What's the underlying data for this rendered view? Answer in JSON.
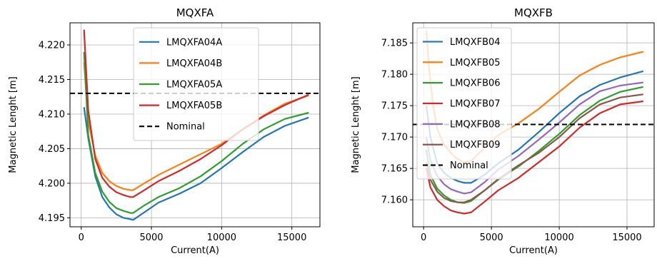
{
  "chart_data": [
    {
      "type": "line",
      "title": "MQXFA",
      "xlabel": "Current(A)",
      "ylabel": "Magnetic Lenght [m]",
      "xlim": [
        -800,
        17000
      ],
      "ylim": [
        4.1937,
        4.2232
      ],
      "xticks": [
        0,
        5000,
        10000,
        15000
      ],
      "yticks": [
        4.195,
        4.2,
        4.205,
        4.21,
        4.215,
        4.22
      ],
      "ytick_format": 3,
      "grid": true,
      "legend_position": "upper-center",
      "nominal": {
        "name": "Nominal",
        "value": 4.213
      },
      "series": [
        {
          "name": "LMQXFA04A",
          "color": "#1f77b4",
          "points": [
            [
              200,
              4.211
            ],
            [
              500,
              4.2065
            ],
            [
              1000,
              4.201
            ],
            [
              1500,
              4.198
            ],
            [
              2000,
              4.1965
            ],
            [
              2500,
              4.1955
            ],
            [
              3000,
              4.195
            ],
            [
              3500,
              4.1948
            ],
            [
              3700,
              4.1947
            ],
            [
              4500,
              4.1958
            ],
            [
              5500,
              4.1972
            ],
            [
              7000,
              4.1985
            ],
            [
              8500,
              4.2
            ],
            [
              10000,
              4.2022
            ],
            [
              11500,
              4.2045
            ],
            [
              13000,
              4.2067
            ],
            [
              14500,
              4.2083
            ],
            [
              16200,
              4.2095
            ]
          ]
        },
        {
          "name": "LMQXFA04B",
          "color": "#ff7f0e",
          "points": [
            [
              200,
              4.2175
            ],
            [
              500,
              4.209
            ],
            [
              1000,
              4.204
            ],
            [
              1500,
              4.2015
            ],
            [
              2000,
              4.2003
            ],
            [
              2500,
              4.1996
            ],
            [
              3000,
              4.1992
            ],
            [
              3500,
              4.199
            ],
            [
              3700,
              4.199
            ],
            [
              4500,
              4.2
            ],
            [
              5500,
              4.2012
            ],
            [
              7000,
              4.2027
            ],
            [
              8500,
              4.2042
            ],
            [
              10000,
              4.2057
            ],
            [
              11500,
              4.2078
            ],
            [
              13000,
              4.2098
            ],
            [
              14500,
              4.2115
            ],
            [
              16200,
              4.2127
            ]
          ]
        },
        {
          "name": "LMQXFA05A",
          "color": "#2ca02c",
          "points": [
            [
              200,
              4.219
            ],
            [
              500,
              4.207
            ],
            [
              1000,
              4.2015
            ],
            [
              1500,
              4.1988
            ],
            [
              2000,
              4.1973
            ],
            [
              2500,
              4.1964
            ],
            [
              3000,
              4.196
            ],
            [
              3500,
              4.1957
            ],
            [
              3700,
              4.1957
            ],
            [
              4500,
              4.1968
            ],
            [
              5500,
              4.198
            ],
            [
              7000,
              4.1993
            ],
            [
              8500,
              4.201
            ],
            [
              10000,
              4.2032
            ],
            [
              11500,
              4.2057
            ],
            [
              13000,
              4.2078
            ],
            [
              14500,
              4.2093
            ],
            [
              16200,
              4.2102
            ]
          ]
        },
        {
          "name": "LMQXFA05B",
          "color": "#d62728",
          "points": [
            [
              200,
              4.2222
            ],
            [
              500,
              4.2105
            ],
            [
              1000,
              4.2035
            ],
            [
              1500,
              4.2008
            ],
            [
              2000,
              4.1995
            ],
            [
              2500,
              4.1987
            ],
            [
              3000,
              4.1983
            ],
            [
              3500,
              4.198
            ],
            [
              3700,
              4.198
            ],
            [
              4500,
              4.199
            ],
            [
              5500,
              4.2003
            ],
            [
              7000,
              4.2018
            ],
            [
              8500,
              4.2035
            ],
            [
              10000,
              4.2055
            ],
            [
              11500,
              4.2078
            ],
            [
              13000,
              4.2097
            ],
            [
              14500,
              4.2113
            ],
            [
              16200,
              4.2128
            ]
          ]
        }
      ]
    },
    {
      "type": "line",
      "title": "MQXFB",
      "xlabel": "Current(A)",
      "ylabel": "Magnetic Lenght [m]",
      "xlim": [
        -800,
        17000
      ],
      "ylim": [
        7.1557,
        7.1882
      ],
      "xticks": [
        0,
        5000,
        10000,
        15000
      ],
      "yticks": [
        7.16,
        7.165,
        7.17,
        7.175,
        7.18,
        7.185
      ],
      "ytick_format": 3,
      "grid": true,
      "legend_position": "upper-left",
      "nominal": {
        "name": "Nominal",
        "value": 7.172
      },
      "series": [
        {
          "name": "LMQXFB04",
          "color": "#1f77b4",
          "points": [
            [
              200,
              7.175
            ],
            [
              500,
              7.17
            ],
            [
              1000,
              7.1658
            ],
            [
              1500,
              7.1643
            ],
            [
              2000,
              7.1635
            ],
            [
              2500,
              7.163
            ],
            [
              3000,
              7.1627
            ],
            [
              3500,
              7.1627
            ],
            [
              4500,
              7.164
            ],
            [
              5500,
              7.1658
            ],
            [
              7000,
              7.168
            ],
            [
              8500,
              7.1708
            ],
            [
              10000,
              7.1738
            ],
            [
              11500,
              7.1765
            ],
            [
              13000,
              7.1783
            ],
            [
              14500,
              7.1795
            ],
            [
              16200,
              7.1805
            ]
          ]
        },
        {
          "name": "LMQXFB05",
          "color": "#ff7f0e",
          "points": [
            [
              200,
              7.187
            ],
            [
              400,
              7.181
            ],
            [
              700,
              7.175
            ],
            [
              1000,
              7.1713
            ],
            [
              1500,
              7.1688
            ],
            [
              2000,
              7.1675
            ],
            [
              2500,
              7.1665
            ],
            [
              3000,
              7.166
            ],
            [
              3500,
              7.1662
            ],
            [
              4500,
              7.1683
            ],
            [
              5500,
              7.1703
            ],
            [
              7000,
              7.1722
            ],
            [
              8500,
              7.1745
            ],
            [
              10000,
              7.1772
            ],
            [
              11500,
              7.1798
            ],
            [
              13000,
              7.1815
            ],
            [
              14500,
              7.1827
            ],
            [
              16200,
              7.1836
            ]
          ]
        },
        {
          "name": "LMQXFB06",
          "color": "#2ca02c",
          "points": [
            [
              200,
              7.168
            ],
            [
              500,
              7.164
            ],
            [
              1000,
              7.1618
            ],
            [
              1500,
              7.1607
            ],
            [
              2000,
              7.16
            ],
            [
              2500,
              7.1596
            ],
            [
              3000,
              7.1595
            ],
            [
              3500,
              7.1598
            ],
            [
              4500,
              7.1615
            ],
            [
              5500,
              7.1632
            ],
            [
              7000,
              7.1653
            ],
            [
              8500,
              7.1678
            ],
            [
              10000,
              7.1705
            ],
            [
              11500,
              7.1735
            ],
            [
              13000,
              7.1758
            ],
            [
              14500,
              7.1772
            ],
            [
              16200,
              7.178
            ]
          ]
        },
        {
          "name": "LMQXFB07",
          "color": "#d62728",
          "points": [
            [
              200,
              7.165
            ],
            [
              500,
              7.162
            ],
            [
              1000,
              7.16
            ],
            [
              1500,
              7.159
            ],
            [
              2000,
              7.1583
            ],
            [
              2500,
              7.158
            ],
            [
              3000,
              7.1578
            ],
            [
              3500,
              7.158
            ],
            [
              4500,
              7.1597
            ],
            [
              5500,
              7.1615
            ],
            [
              7000,
              7.1635
            ],
            [
              8500,
              7.166
            ],
            [
              10000,
              7.1685
            ],
            [
              11500,
              7.1715
            ],
            [
              13000,
              7.1738
            ],
            [
              14500,
              7.1752
            ],
            [
              16200,
              7.1757
            ]
          ]
        },
        {
          "name": "LMQXFB08",
          "color": "#9467bd",
          "points": [
            [
              200,
              7.17
            ],
            [
              500,
              7.1663
            ],
            [
              1000,
              7.1638
            ],
            [
              1500,
              7.1625
            ],
            [
              2000,
              7.1617
            ],
            [
              2500,
              7.1613
            ],
            [
              3000,
              7.161
            ],
            [
              3500,
              7.1612
            ],
            [
              4500,
              7.1628
            ],
            [
              5500,
              7.1648
            ],
            [
              7000,
              7.167
            ],
            [
              8500,
              7.1696
            ],
            [
              10000,
              7.1723
            ],
            [
              11500,
              7.1752
            ],
            [
              13000,
              7.1773
            ],
            [
              14500,
              7.1782
            ],
            [
              16200,
              7.1787
            ]
          ]
        },
        {
          "name": "LMQXFB09",
          "color": "#8c564b",
          "points": [
            [
              200,
              7.166
            ],
            [
              500,
              7.1632
            ],
            [
              1000,
              7.1613
            ],
            [
              1500,
              7.1603
            ],
            [
              2000,
              7.1598
            ],
            [
              2500,
              7.1596
            ],
            [
              3000,
              7.1596
            ],
            [
              3500,
              7.16
            ],
            [
              4500,
              7.1615
            ],
            [
              5500,
              7.1633
            ],
            [
              7000,
              7.1655
            ],
            [
              8500,
              7.1675
            ],
            [
              10000,
              7.17
            ],
            [
              11500,
              7.173
            ],
            [
              13000,
              7.1752
            ],
            [
              14500,
              7.1763
            ],
            [
              16200,
              7.1768
            ]
          ]
        }
      ]
    }
  ]
}
